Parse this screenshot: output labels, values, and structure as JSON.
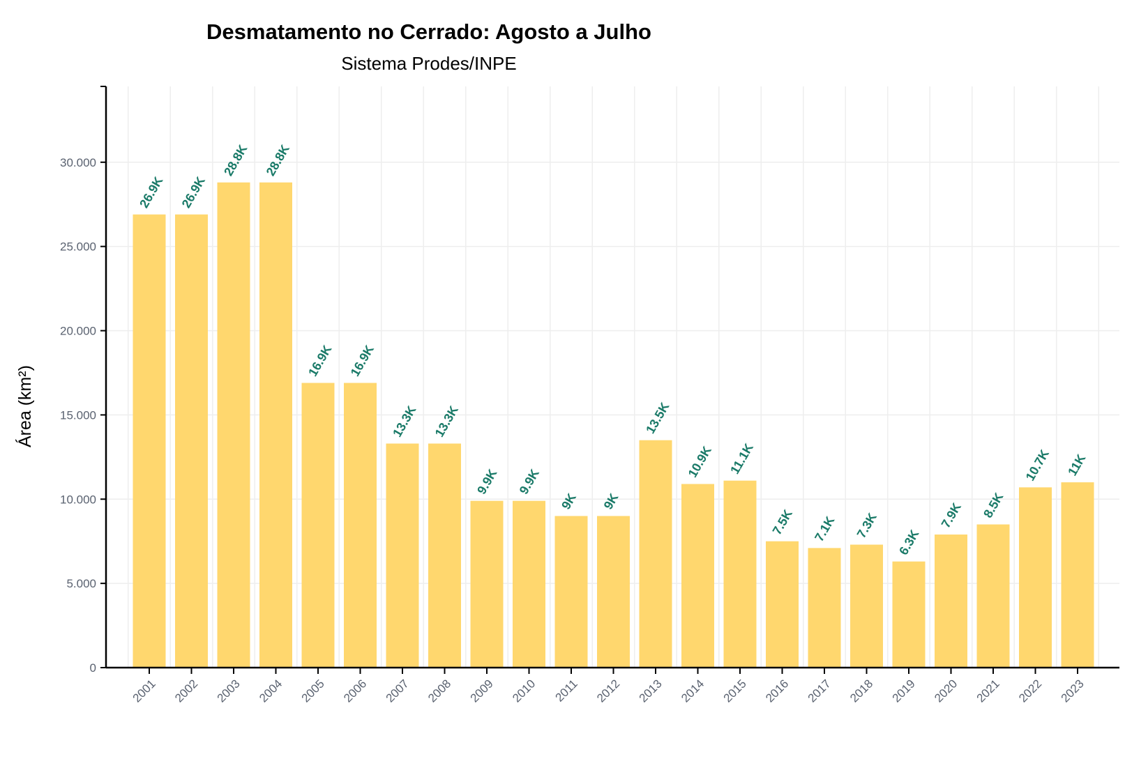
{
  "chart_data": {
    "type": "bar",
    "title": "Desmatamento no Cerrado: Agosto a Julho",
    "subtitle": "Sistema Prodes/INPE",
    "xlabel": "",
    "ylabel": "Área (km²)",
    "ylim": [
      0,
      34500
    ],
    "yticks": [
      0,
      5000,
      10000,
      15000,
      20000,
      25000,
      30000
    ],
    "ytick_labels": [
      "0",
      "5.000",
      "10.000",
      "15.000",
      "20.000",
      "25.000",
      "30.000"
    ],
    "grid": true,
    "categories": [
      "2001",
      "2002",
      "2003",
      "2004",
      "2005",
      "2006",
      "2007",
      "2008",
      "2009",
      "2010",
      "2011",
      "2012",
      "2013",
      "2014",
      "2015",
      "2016",
      "2017",
      "2018",
      "2019",
      "2020",
      "2021",
      "2022",
      "2023"
    ],
    "values": [
      26900,
      26900,
      28800,
      28800,
      16900,
      16900,
      13300,
      13300,
      9900,
      9900,
      9000,
      9000,
      13500,
      10900,
      11100,
      7500,
      7100,
      7300,
      6300,
      7900,
      8500,
      10700,
      11000
    ],
    "data_labels": [
      "26.9K",
      "26.9K",
      "28.8K",
      "28.8K",
      "16.9K",
      "16.9K",
      "13.3K",
      "13.3K",
      "9.9K",
      "9.9K",
      "9K",
      "9K",
      "13.5K",
      "10.9K",
      "11.1K",
      "7.5K",
      "7.1K",
      "7.3K",
      "6.3K",
      "7.9K",
      "8.5K",
      "10.7K",
      "11K"
    ],
    "colors": {
      "bar": "#ffd76e",
      "data_label": "#1a7a68",
      "axis": "#000000",
      "grid": "#eeeeee",
      "tick_label": "#5a6270"
    }
  }
}
